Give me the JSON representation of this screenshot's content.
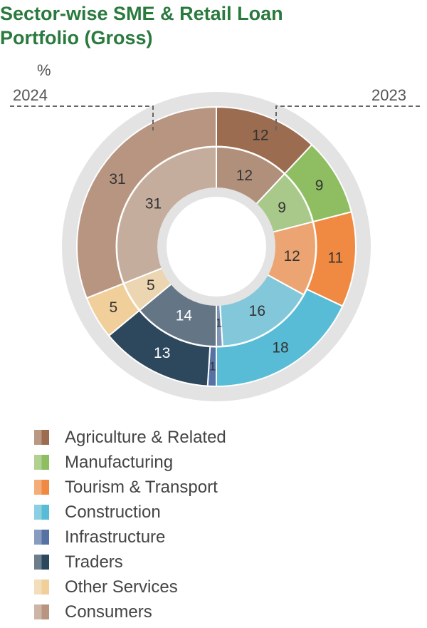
{
  "title": [
    "Sector-wise SME & Retail Loan",
    "Portfolio (Gross)"
  ],
  "unit": "%",
  "year_inner": "2024",
  "year_outer": "2023",
  "chart_data": {
    "type": "pie",
    "title": "Sector-wise SME & Retail Loan Portfolio (Gross)",
    "unit": "%",
    "categories": [
      "Agriculture & Related",
      "Manufacturing",
      "Tourism & Transport",
      "Construction",
      "Infrastructure",
      "Traders",
      "Other Services",
      "Consumers"
    ],
    "colors": [
      "#9b6c4f",
      "#8fbe62",
      "#f08a42",
      "#58bcd6",
      "#5672a4",
      "#2d475c",
      "#f0cf9b",
      "#b89580"
    ],
    "series": [
      {
        "name": "2024",
        "ring": "inner",
        "values": [
          12,
          9,
          12,
          16,
          1,
          14,
          5,
          31
        ]
      },
      {
        "name": "2023",
        "ring": "outer",
        "values": [
          12,
          9,
          11,
          18,
          1,
          13,
          5,
          31
        ]
      }
    ]
  }
}
